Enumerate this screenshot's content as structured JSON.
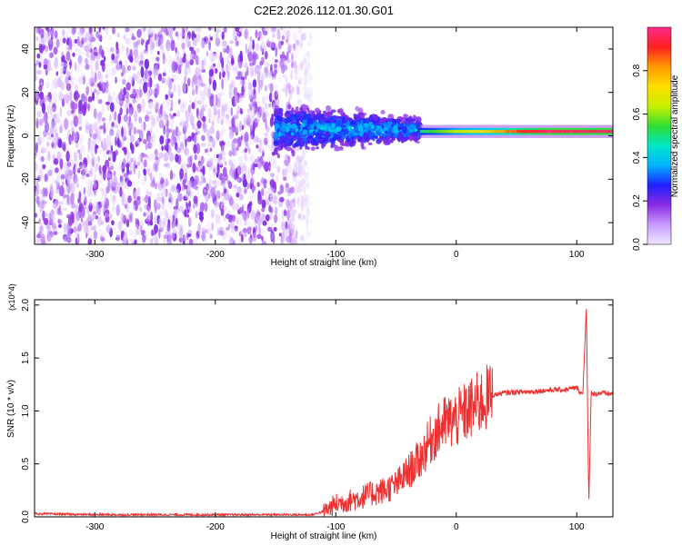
{
  "title": "C2E2.2026.112.01.30.G01",
  "chart_data": [
    {
      "type": "heatmap",
      "name": "spectrogram",
      "xlabel": "Height of straight line (km)",
      "ylabel": "Frequency (Hz)",
      "xlim": [
        -350,
        130
      ],
      "ylim": [
        -50,
        50
      ],
      "xticks": [
        -300,
        -200,
        -100,
        0,
        100
      ],
      "yticks": [
        -40,
        -20,
        0,
        20,
        40
      ],
      "colorbar": {
        "label": "Normalized spectral amplitude",
        "range": [
          0,
          1
        ],
        "ticks": [
          0.0,
          0.2,
          0.4,
          0.6,
          0.8
        ],
        "colors": [
          "#f0e6ff",
          "#c89bff",
          "#8a2be2",
          "#2020ff",
          "#00b4ff",
          "#00e6c8",
          "#33dd33",
          "#c8f000",
          "#ffdd00",
          "#ff9900",
          "#ff2020",
          "#ff2a8c"
        ]
      },
      "regions": [
        {
          "x": [
            -350,
            -120
          ],
          "freq": [
            -50,
            50
          ],
          "amplitude": [
            0.0,
            0.2
          ],
          "pattern": "noise"
        },
        {
          "x": [
            -150,
            -30
          ],
          "freq": [
            -15,
            15
          ],
          "amplitude": [
            0.1,
            0.45
          ],
          "pattern": "broadband"
        },
        {
          "x": [
            -30,
            130
          ],
          "center_freq": 2,
          "half_width": 3,
          "amplitude": [
            0.5,
            1.0
          ],
          "pattern": "narrow-line"
        }
      ]
    },
    {
      "type": "line",
      "name": "snr",
      "xlabel": "Height of straight line (km)",
      "ylabel": "SNR (10 * v/v)",
      "yscale_label": "(x10^4)",
      "xlim": [
        -350,
        130
      ],
      "ylim": [
        0,
        2.05
      ],
      "xticks": [
        -300,
        -200,
        -100,
        0,
        100
      ],
      "yticks": [
        0.0,
        0.5,
        1.0,
        1.5,
        2.0
      ],
      "color": "#ee3030",
      "series": [
        {
          "x": [
            -350,
            -300,
            -250,
            -200,
            -150,
            -120,
            -110,
            -100,
            -90,
            -80,
            -70,
            -60,
            -50,
            -40,
            -30,
            -20,
            -10,
            0,
            10,
            20,
            30,
            40,
            50,
            60,
            70,
            80,
            90,
            100,
            105,
            108,
            110,
            112,
            115,
            120,
            130
          ],
          "y": [
            0.03,
            0.02,
            0.02,
            0.02,
            0.02,
            0.02,
            0.05,
            0.12,
            0.15,
            0.18,
            0.22,
            0.25,
            0.3,
            0.42,
            0.55,
            0.75,
            0.88,
            0.92,
            1.0,
            1.08,
            1.15,
            1.17,
            1.18,
            1.18,
            1.19,
            1.2,
            1.2,
            1.22,
            1.15,
            2.0,
            0.1,
            1.18,
            1.16,
            1.17,
            1.16
          ]
        }
      ]
    }
  ]
}
